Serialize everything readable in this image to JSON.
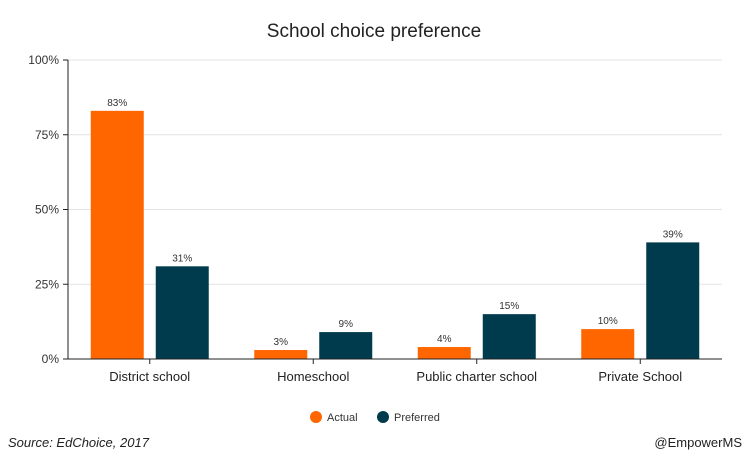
{
  "chart_data": {
    "type": "bar",
    "title": "School choice preference",
    "categories": [
      "District school",
      "Homeschool",
      "Public charter school",
      "Private School"
    ],
    "series": [
      {
        "name": "Actual",
        "color": "#ff6600",
        "values": [
          83,
          3,
          4,
          10
        ],
        "labels": [
          "83%",
          "3%",
          "4%",
          "10%"
        ]
      },
      {
        "name": "Preferred",
        "color": "#003a4d",
        "values": [
          31,
          9,
          15,
          39
        ],
        "labels": [
          "31%",
          "9%",
          "15%",
          "39%"
        ]
      }
    ],
    "ylim": [
      0,
      100
    ],
    "yticks": [
      0,
      25,
      50,
      75,
      100
    ],
    "ytick_labels": [
      "0%",
      "25%",
      "50%",
      "75%",
      "100%"
    ],
    "grid": true,
    "legend": "bottom-center"
  },
  "footer": {
    "source": "Source: EdChoice, 2017",
    "credit": "@EmpowerMS"
  }
}
